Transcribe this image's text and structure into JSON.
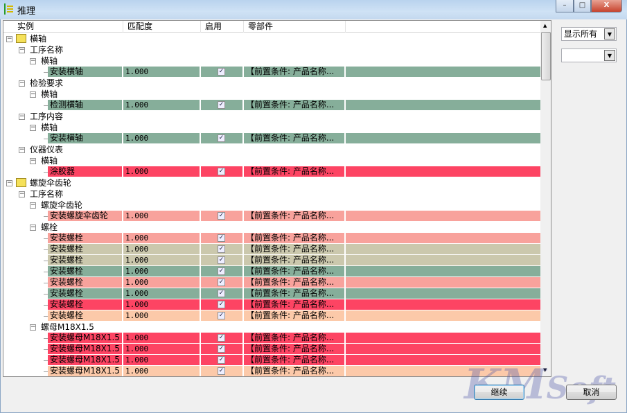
{
  "window": {
    "title": "推理",
    "minimize": "–",
    "maximize": "□",
    "close": "X"
  },
  "columns": [
    "实例",
    "匹配度",
    "启用",
    "零部件"
  ],
  "colors": {
    "green": "#86ae9a",
    "pink": "#f8a29c",
    "khaki": "#cbc8ad",
    "red": "#fd4463",
    "peach": "#fcc9a9"
  },
  "rows": [
    {
      "level": 0,
      "label": "横轴"
    },
    {
      "level": 1,
      "label": "工序名称"
    },
    {
      "level": 2,
      "label": "横轴"
    },
    {
      "level": 3,
      "label": "安装横轴",
      "match": "1.000",
      "enabled": true,
      "part": "【前置条件: 产品名称...",
      "color": "green"
    },
    {
      "level": 1,
      "label": "检验要求"
    },
    {
      "level": 2,
      "label": "横轴"
    },
    {
      "level": 3,
      "label": "检测横轴",
      "match": "1.000",
      "enabled": true,
      "part": "【前置条件: 产品名称...",
      "color": "green"
    },
    {
      "level": 1,
      "label": "工序内容"
    },
    {
      "level": 2,
      "label": "横轴"
    },
    {
      "level": 3,
      "label": "安装横轴",
      "match": "1.000",
      "enabled": true,
      "part": "【前置条件: 产品名称...",
      "color": "green"
    },
    {
      "level": 1,
      "label": "仪器仪表"
    },
    {
      "level": 2,
      "label": "横轴"
    },
    {
      "level": 3,
      "label": "涂胶器",
      "match": "1.000",
      "enabled": true,
      "part": "【前置条件: 产品名称...",
      "color": "red"
    },
    {
      "level": 0,
      "label": "螺旋伞齿轮"
    },
    {
      "level": 1,
      "label": "工序名称"
    },
    {
      "level": 2,
      "label": "螺旋伞齿轮"
    },
    {
      "level": 3,
      "label": "安装螺旋伞齿轮",
      "match": "1.000",
      "enabled": true,
      "part": "【前置条件: 产品名称...",
      "color": "pink"
    },
    {
      "level": 2,
      "label": "螺栓"
    },
    {
      "level": 3,
      "label": "安装螺栓",
      "match": "1.000",
      "enabled": true,
      "part": "【前置条件: 产品名称...",
      "color": "pink"
    },
    {
      "level": 3,
      "label": "安装螺栓",
      "match": "1.000",
      "enabled": true,
      "part": "【前置条件: 产品名称...",
      "color": "khaki"
    },
    {
      "level": 3,
      "label": "安装螺栓",
      "match": "1.000",
      "enabled": true,
      "part": "【前置条件: 产品名称...",
      "color": "khaki"
    },
    {
      "level": 3,
      "label": "安装螺栓",
      "match": "1.000",
      "enabled": true,
      "part": "【前置条件: 产品名称...",
      "color": "green"
    },
    {
      "level": 3,
      "label": "安装螺栓",
      "match": "1.000",
      "enabled": true,
      "part": "【前置条件: 产品名称...",
      "color": "pink"
    },
    {
      "level": 3,
      "label": "安装螺栓",
      "match": "1.000",
      "enabled": true,
      "part": "【前置条件: 产品名称...",
      "color": "green"
    },
    {
      "level": 3,
      "label": "安装螺栓",
      "match": "1.000",
      "enabled": true,
      "part": "【前置条件: 产品名称...",
      "color": "red"
    },
    {
      "level": 3,
      "label": "安装螺栓",
      "match": "1.000",
      "enabled": true,
      "part": "【前置条件: 产品名称...",
      "color": "peach"
    },
    {
      "level": 2,
      "label": "螺母M18X1.5"
    },
    {
      "level": 3,
      "label": "安装螺母M18X1.5",
      "match": "1.000",
      "enabled": true,
      "part": "【前置条件: 产品名称...",
      "color": "red"
    },
    {
      "level": 3,
      "label": "安装螺母M18X1.5",
      "match": "1.000",
      "enabled": true,
      "part": "【前置条件: 产品名称...",
      "color": "red"
    },
    {
      "level": 3,
      "label": "安装螺母M18X1.5",
      "match": "1.000",
      "enabled": true,
      "part": "【前置条件: 产品名称...",
      "color": "red"
    },
    {
      "level": 3,
      "label": "安装螺母M18X1.5",
      "match": "1.000",
      "enabled": true,
      "part": "【前置条件: 产品名称...",
      "color": "peach"
    }
  ],
  "filter": {
    "selected": "显示所有",
    "second": ""
  },
  "buttons": {
    "continue": "继续",
    "cancel": "取消"
  },
  "watermark": "KMSoft"
}
